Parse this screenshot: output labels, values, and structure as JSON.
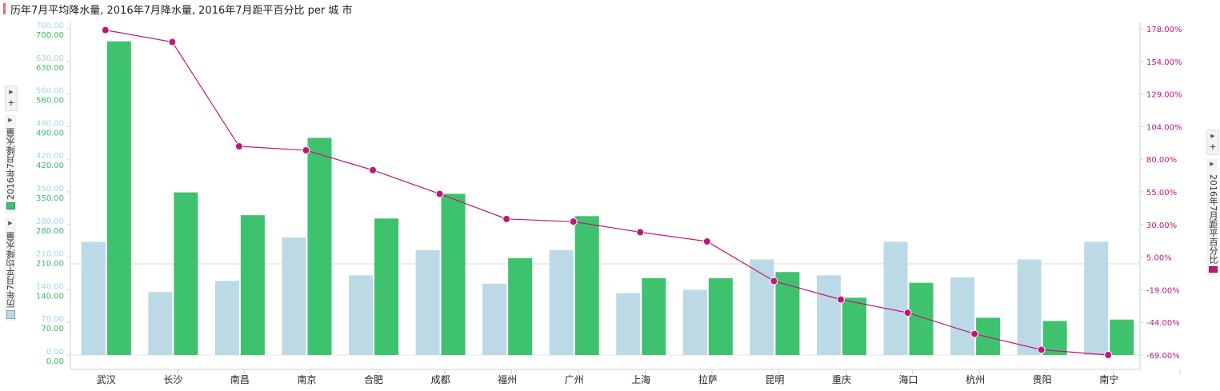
{
  "header": {
    "title": "历年7月平均降水量, 2016年7月降水量, 2016年7月距平百分比 per 城 市"
  },
  "colors": {
    "series_avg": "#bcd9e6",
    "series_2016": "#3fc26e",
    "series_pct": "#c0167a",
    "title_mark": "#e86a6a"
  },
  "legend": {
    "left_series_1": "历年7月平均降水量",
    "left_series_2": "2016年7月降水量",
    "right_series": "2016年7月距平百分比"
  },
  "controls": {
    "plus_label": "+",
    "arrow_icon": "triangle-right-icon"
  },
  "chart_data": {
    "type": "bar",
    "title": "历年7月平均降水量, 2016年7月降水量, 2016年7月距平百分比 per 城 市",
    "categories": [
      "武汉",
      "长沙",
      "南昌",
      "南京",
      "合肥",
      "成都",
      "福州",
      "广州",
      "上海",
      "拉萨",
      "昆明",
      "重庆",
      "海口",
      "杭州",
      "贵阳",
      "南宁"
    ],
    "series": [
      {
        "name": "历年7月平均降水量",
        "type": "bar",
        "axis": "left_1",
        "values": [
          243,
          135,
          159,
          252,
          171,
          225,
          153,
          225,
          133,
          140,
          205,
          171,
          243,
          167,
          205,
          243
        ]
      },
      {
        "name": "2016年7月降水量",
        "type": "bar",
        "axis": "left_2",
        "values": [
          673,
          349,
          300,
          466,
          293,
          346,
          208,
          298,
          165,
          165,
          178,
          123,
          155,
          80,
          73,
          76
        ]
      },
      {
        "name": "2016年7月距平百分比",
        "type": "line",
        "axis": "right",
        "values": [
          177,
          168,
          89,
          86,
          71,
          53,
          34,
          32,
          24,
          17,
          -13,
          -27,
          -37,
          -53,
          -65,
          -69
        ]
      }
    ],
    "axes": {
      "left_1": {
        "label": "历年7月平均降水量",
        "ylim": [
          0,
          700
        ],
        "ticks": [
          "0.00",
          "70.00",
          "140.00",
          "210.00",
          "280.00",
          "350.00",
          "420.00",
          "490.00",
          "560.00",
          "630.00",
          "700.00"
        ]
      },
      "left_2": {
        "label": "2016年7月降水量",
        "ylim": [
          0,
          700
        ],
        "ticks": [
          "0.00",
          "70.00",
          "140.00",
          "210.00",
          "280.00",
          "350.00",
          "420.00",
          "490.00",
          "560.00",
          "630.00",
          "700.00"
        ]
      },
      "right": {
        "label": "2016年7月距平百分比",
        "ylim": [
          -69,
          178
        ],
        "ticks": [
          "-69.00%",
          "-44.00%",
          "-19.00%",
          "5.00%",
          "30.00%",
          "55.00%",
          "80.00%",
          "104.00%",
          "129.00%",
          "154.00%",
          "178.00%"
        ]
      }
    },
    "grid": false
  }
}
